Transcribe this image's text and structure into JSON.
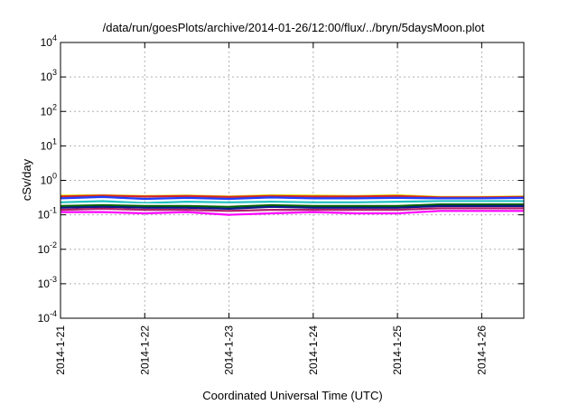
{
  "chart_data": {
    "type": "line",
    "title": "/data/run/goesPlots/archive/2014-01-26/12:00/flux/../bryn/5daysMoon.plot",
    "xlabel": "Coordinated Universal Time (UTC)",
    "ylabel": "cSv/day",
    "yscale": "log",
    "ylim": [
      0.0001,
      10000
    ],
    "xlim": [
      "2014-01-21T00:00",
      "2014-01-26T12:00"
    ],
    "grid": true,
    "xticks": [
      {
        "value": "2014-01-21",
        "label": "2014-1-21"
      },
      {
        "value": "2014-01-22",
        "label": "2014-1-22"
      },
      {
        "value": "2014-01-23",
        "label": "2014-1-23"
      },
      {
        "value": "2014-01-24",
        "label": "2014-1-24"
      },
      {
        "value": "2014-01-25",
        "label": "2014-1-25"
      },
      {
        "value": "2014-01-26",
        "label": "2014-1-26"
      }
    ],
    "yticks": [
      {
        "value": 0.0001,
        "base": "10",
        "exp": "-4"
      },
      {
        "value": 0.001,
        "base": "10",
        "exp": "-3"
      },
      {
        "value": 0.01,
        "base": "10",
        "exp": "-2"
      },
      {
        "value": 0.1,
        "base": "10",
        "exp": "-1"
      },
      {
        "value": 1,
        "base": "10",
        "exp": "0"
      },
      {
        "value": 10,
        "base": "10",
        "exp": "1"
      },
      {
        "value": 100,
        "base": "10",
        "exp": "2"
      },
      {
        "value": 1000,
        "base": "10",
        "exp": "3"
      },
      {
        "value": 10000,
        "base": "10",
        "exp": "4"
      }
    ],
    "x": [
      "2014-01-21T00:00",
      "2014-01-21T12:00",
      "2014-01-22T00:00",
      "2014-01-22T12:00",
      "2014-01-23T00:00",
      "2014-01-23T12:00",
      "2014-01-24T00:00",
      "2014-01-24T12:00",
      "2014-01-25T00:00",
      "2014-01-25T12:00",
      "2014-01-26T00:00",
      "2014-01-26T12:00"
    ],
    "series": [
      {
        "color": "#e0e000",
        "values": [
          0.36,
          0.37,
          0.35,
          0.36,
          0.34,
          0.37,
          0.36,
          0.35,
          0.37,
          0.33,
          0.33,
          0.34
        ]
      },
      {
        "color": "#d62728",
        "values": [
          0.34,
          0.36,
          0.34,
          0.35,
          0.33,
          0.35,
          0.34,
          0.34,
          0.35,
          0.32,
          0.32,
          0.33
        ]
      },
      {
        "color": "#1f3fff",
        "values": [
          0.3,
          0.33,
          0.29,
          0.31,
          0.29,
          0.32,
          0.3,
          0.3,
          0.31,
          0.3,
          0.3,
          0.31
        ]
      },
      {
        "color": "#20c0c0",
        "values": [
          0.23,
          0.25,
          0.22,
          0.24,
          0.23,
          0.24,
          0.23,
          0.23,
          0.24,
          0.25,
          0.25,
          0.25
        ]
      },
      {
        "color": "#ffffff",
        "values": [
          0.2,
          0.21,
          0.2,
          0.2,
          0.19,
          0.21,
          0.2,
          0.2,
          0.2,
          0.22,
          0.22,
          0.22
        ]
      },
      {
        "color": "#006400",
        "values": [
          0.18,
          0.19,
          0.18,
          0.18,
          0.17,
          0.19,
          0.18,
          0.18,
          0.18,
          0.2,
          0.2,
          0.2
        ]
      },
      {
        "color": "#0a1a8a",
        "values": [
          0.16,
          0.17,
          0.16,
          0.16,
          0.15,
          0.17,
          0.16,
          0.16,
          0.16,
          0.18,
          0.18,
          0.18
        ]
      },
      {
        "color": "#b0206a",
        "values": [
          0.14,
          0.15,
          0.14,
          0.14,
          0.13,
          0.14,
          0.14,
          0.14,
          0.14,
          0.155,
          0.155,
          0.155
        ]
      },
      {
        "color": "#ff00ff",
        "values": [
          0.12,
          0.12,
          0.11,
          0.12,
          0.1,
          0.11,
          0.12,
          0.11,
          0.11,
          0.13,
          0.13,
          0.13
        ]
      }
    ]
  }
}
